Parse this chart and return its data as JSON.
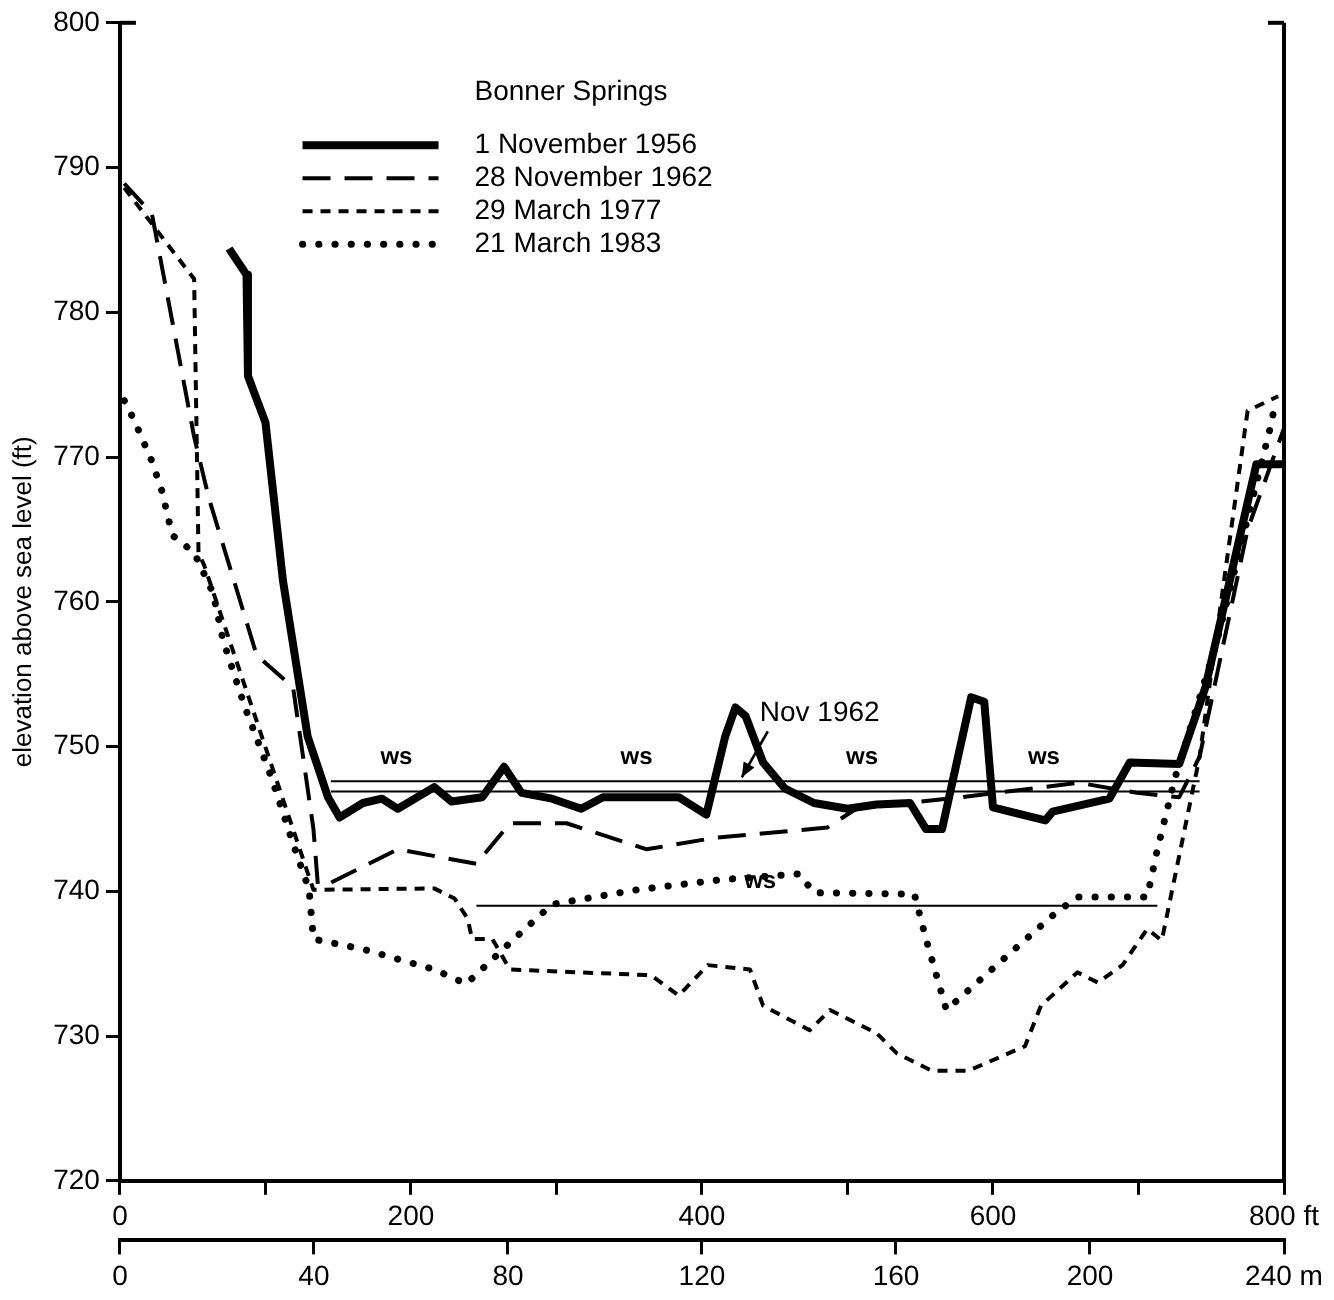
{
  "chart_data": {
    "type": "line",
    "ylabel": "elevation above sea level (ft)",
    "legend_title": "Bonner Springs",
    "legend": "top",
    "grid": false,
    "marker": "none",
    "xlim": [
      0,
      800
    ],
    "xticks": [
      0,
      {
        "value": 100,
        "label": null
      },
      200,
      {
        "value": 300,
        "label": null
      },
      400,
      {
        "value": 500,
        "label": null
      },
      600,
      {
        "value": 700,
        "label": null
      },
      {
        "value": 800,
        "label": "800 ft"
      }
    ],
    "x2lim": [
      0,
      240
    ],
    "x2ticks": [
      0,
      40,
      80,
      120,
      160,
      200,
      {
        "value": 240,
        "label": "240 m"
      }
    ],
    "ylim": [
      720,
      800
    ],
    "yticks": [
      720,
      730,
      740,
      750,
      760,
      770,
      780,
      790,
      800
    ],
    "series": [
      {
        "name": "1 November 1956",
        "color": "#000000",
        "line_style": "solid",
        "x": [
          75,
          87,
          88,
          100,
          112,
          129,
          143,
          151,
          167,
          180,
          191,
          216,
          228,
          249,
          264,
          276,
          297,
          317,
          332,
          384,
          403,
          416,
          423,
          430,
          442,
          457,
          477,
          500,
          520,
          543,
          554,
          565,
          585,
          594,
          600,
          636,
          641,
          680,
          694,
          728,
          746,
          781,
          800
        ],
        "values": [
          784.4,
          782.6,
          775.6,
          772.4,
          761.5,
          750.7,
          746.5,
          745.1,
          746.1,
          746.4,
          745.7,
          747.2,
          746.2,
          746.5,
          748.6,
          746.8,
          746.4,
          745.7,
          746.5,
          746.5,
          745.3,
          750.7,
          752.7,
          752.1,
          748.9,
          747.1,
          746.1,
          745.7,
          746.0,
          746.1,
          744.3,
          744.3,
          753.4,
          753.1,
          745.8,
          744.9,
          745.5,
          746.4,
          748.9,
          748.8,
          754.1,
          769.5,
          769.5
        ]
      },
      {
        "name": "28 November 1962",
        "color": "#000000",
        "line_style": "dashed",
        "x": [
          3,
          22,
          51,
          61,
          94,
          119,
          133,
          136,
          143,
          191,
          245,
          268,
          307,
          362,
          409,
          486,
          506,
          578,
          659,
          699,
          728,
          742,
          775,
          800
        ],
        "values": [
          788.9,
          786.8,
          771.4,
          767.2,
          756.3,
          754.1,
          744.3,
          740.5,
          740.5,
          742.9,
          741.9,
          744.7,
          744.7,
          742.9,
          743.7,
          744.4,
          745.7,
          746.5,
          747.5,
          746.8,
          746.5,
          749.3,
          765.0,
          772.0
        ]
      },
      {
        "name": "29 March 1977",
        "color": "#000000",
        "line_style": "dashed",
        "x": [
          3,
          51,
          54,
          58,
          133,
          216,
          230,
          239,
          242,
          256,
          268,
          365,
          384,
          404,
          433,
          442,
          474,
          488,
          520,
          534,
          558,
          583,
          622,
          633,
          658,
          672,
          689,
          706,
          716,
          742,
          775,
          796
        ],
        "values": [
          788.6,
          782.3,
          763.4,
          762.5,
          740.1,
          740.2,
          739.5,
          738.1,
          736.7,
          736.7,
          734.6,
          734.2,
          732.8,
          734.9,
          734.6,
          732.1,
          730.4,
          731.8,
          730.2,
          728.8,
          727.6,
          727.6,
          729.3,
          732.1,
          734.4,
          733.7,
          734.9,
          737.4,
          736.6,
          749.3,
          773.2,
          774.2
        ]
      },
      {
        "name": "21 March 1983",
        "color": "#000000",
        "line_style": "dotted",
        "x": [
          3,
          10,
          22,
          29,
          36,
          51,
          64,
          71,
          86,
          104,
          119,
          130,
          133,
          167,
          216,
          238,
          274,
          297,
          355,
          413,
          467,
          477,
          546,
          554,
          568,
          607,
          643,
          658,
          706,
          713,
          725,
          754,
          790,
          793
        ],
        "values": [
          773.9,
          772.5,
          769.7,
          767.6,
          764.6,
          763.4,
          760.6,
          757.3,
          752.7,
          747.9,
          743.3,
          740.1,
          736.7,
          736.0,
          734.6,
          733.6,
          737.0,
          739.1,
          740.1,
          740.8,
          741.2,
          739.9,
          739.8,
          736.7,
          731.8,
          735.3,
          738.5,
          739.6,
          739.6,
          742.9,
          747.8,
          757.3,
          771.8,
          773.2
        ]
      },
      {
        "color": "#000000",
        "line_style": "solid",
        "x": [
          145,
          742
        ],
        "values": [
          747.6,
          747.6
        ]
      },
      {
        "color": "#000000",
        "line_style": "solid",
        "x": [
          145,
          742
        ],
        "values": [
          746.9,
          746.9
        ]
      },
      {
        "color": "#000000",
        "line_style": "solid",
        "x": [
          245,
          713
        ],
        "values": [
          739.0,
          739.0
        ]
      }
    ],
    "annotations": [
      {
        "text": "ws",
        "x": 190,
        "y": 747.6
      },
      {
        "text": "ws",
        "x": 355,
        "y": 747.6
      },
      {
        "text": "ws",
        "x": 510,
        "y": 747.6
      },
      {
        "text": "ws",
        "x": 635,
        "y": 747.6
      },
      {
        "text": "ws",
        "x": 440,
        "y": 739.0
      },
      {
        "text": "Nov 1962",
        "x": 426,
        "y": 747.6
      }
    ]
  }
}
